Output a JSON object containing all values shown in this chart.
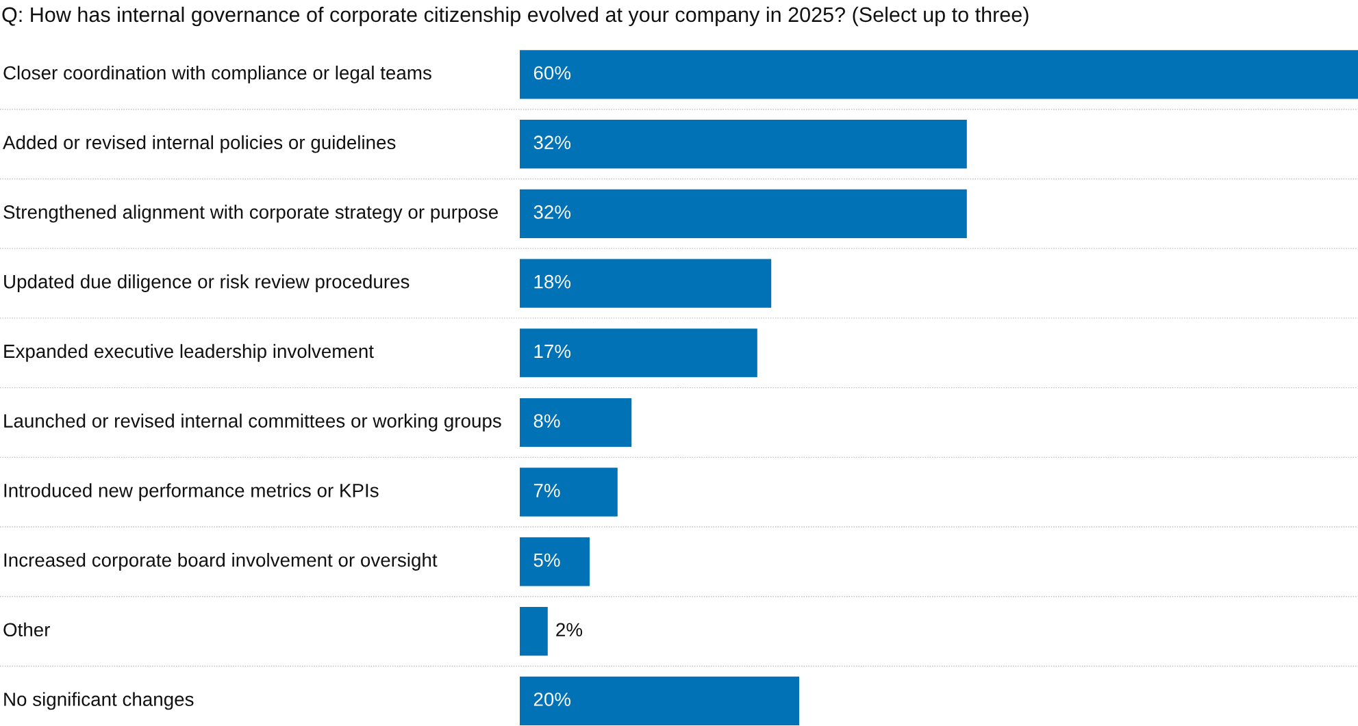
{
  "chart_data": {
    "type": "bar",
    "orientation": "horizontal",
    "title": "Q: How has internal governance of corporate citizenship evolved at your company in 2025? (Select up to three)",
    "categories": [
      "Closer coordination with compliance or legal teams",
      "Added or revised internal policies or guidelines",
      "Strengthened alignment with corporate strategy or purpose",
      "Updated due diligence or risk review procedures",
      "Expanded executive leadership involvement",
      "Launched or revised internal committees or working groups",
      "Introduced new performance metrics or KPIs",
      "Increased corporate board involvement or oversight",
      "Other",
      "No significant changes"
    ],
    "values": [
      60,
      32,
      32,
      18,
      17,
      8,
      7,
      5,
      2,
      20
    ],
    "color": "#0072b5",
    "value_labels": [
      "60%",
      "32%",
      "32%",
      "18%",
      "17%",
      "8%",
      "7%",
      "5%",
      "2%",
      "20%"
    ],
    "grid": "y",
    "tick_labels": "y"
  }
}
